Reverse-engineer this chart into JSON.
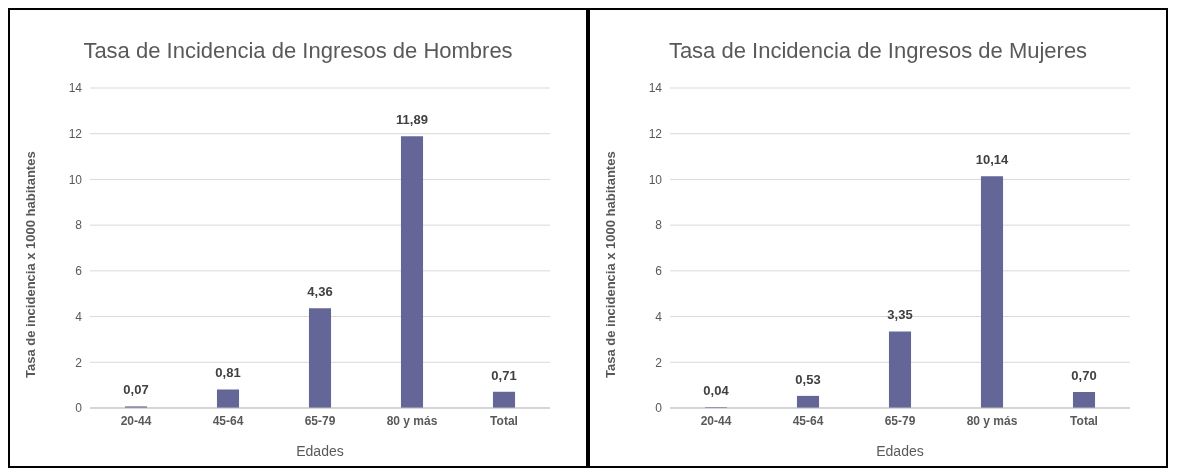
{
  "chart_data": [
    {
      "type": "bar",
      "title": "Tasa de Incidencia de Ingresos de Hombres",
      "xlabel": "Edades",
      "ylabel": "Tasa de incidencia x 1000 habitantes",
      "categories": [
        "20-44",
        "45-64",
        "65-79",
        "80 y más",
        "Total"
      ],
      "values": [
        0.07,
        0.81,
        4.36,
        11.89,
        0.71
      ],
      "value_labels": [
        "0,07",
        "0,81",
        "4,36",
        "11,89",
        "0,71"
      ],
      "color": "#636696",
      "ylim": [
        0,
        14
      ],
      "yticks": [
        0,
        2,
        4,
        6,
        8,
        10,
        12,
        14
      ],
      "grid": "y"
    },
    {
      "type": "bar",
      "title": "Tasa de Incidencia de Ingresos de Mujeres",
      "xlabel": "Edades",
      "ylabel": "Tasa de incidencia x 1000 habitantes",
      "categories": [
        "20-44",
        "45-64",
        "65-79",
        "80 y más",
        "Total"
      ],
      "values": [
        0.04,
        0.53,
        3.35,
        10.14,
        0.7
      ],
      "value_labels": [
        "0,04",
        "0,53",
        "3,35",
        "10,14",
        "0,70"
      ],
      "color": "#636696",
      "ylim": [
        0,
        14
      ],
      "yticks": [
        0,
        2,
        4,
        6,
        8,
        10,
        12,
        14
      ],
      "grid": "y"
    }
  ]
}
